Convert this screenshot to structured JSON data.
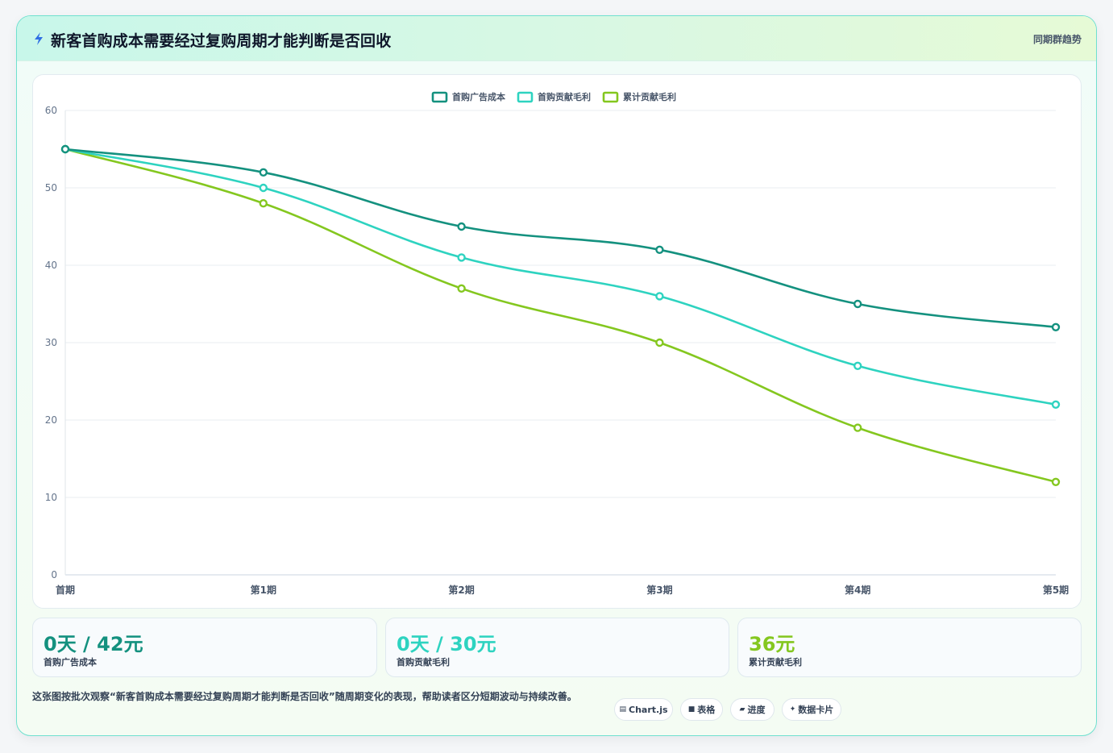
{
  "header": {
    "icon": "bolt-icon",
    "title": "新客首购成本需要经过复购周期才能判断是否回收",
    "badge": "同期群趋势"
  },
  "colors": {
    "series_1": "#14917f",
    "series_2": "#2ed3c0",
    "series_3": "#84c71f",
    "border": "#6fe0cf"
  },
  "chart_data": {
    "type": "line",
    "categories": [
      "首期",
      "第1期",
      "第2期",
      "第3期",
      "第4期",
      "第5期"
    ],
    "series": [
      {
        "name": "首购广告成本",
        "values": [
          55,
          52,
          45,
          42,
          35,
          32
        ]
      },
      {
        "name": "首购贡献毛利",
        "values": [
          55,
          50,
          41,
          36,
          27,
          22
        ]
      },
      {
        "name": "累计贡献毛利",
        "values": [
          55,
          48,
          37,
          30,
          19,
          12
        ]
      }
    ],
    "ylim": [
      0,
      60
    ],
    "yticks": [
      "0",
      "10",
      "20",
      "30",
      "40",
      "50",
      "60"
    ],
    "grid": true,
    "legend": "top-center"
  },
  "stats": [
    {
      "value": "0天 / 42元",
      "label": "首购广告成本"
    },
    {
      "value": "0天 / 30元",
      "label": "首购贡献毛利"
    },
    {
      "value": "36元",
      "label": "累计贡献毛利"
    }
  ],
  "footer": {
    "description": "这张图按批次观察“新客首购成本需要经过复购周期才能判断是否回收”随周期变化的表现，帮助读者区分短期波动与持续改善。"
  },
  "tags": [
    {
      "icon": "chart-icon",
      "glyph": "▤",
      "label": "Chart.js"
    },
    {
      "icon": "table-icon",
      "glyph": "■",
      "label": "表格"
    },
    {
      "icon": "progress-icon",
      "glyph": "▰",
      "label": "进度"
    },
    {
      "icon": "sparkle-icon",
      "glyph": "✦",
      "label": "数据卡片"
    }
  ]
}
